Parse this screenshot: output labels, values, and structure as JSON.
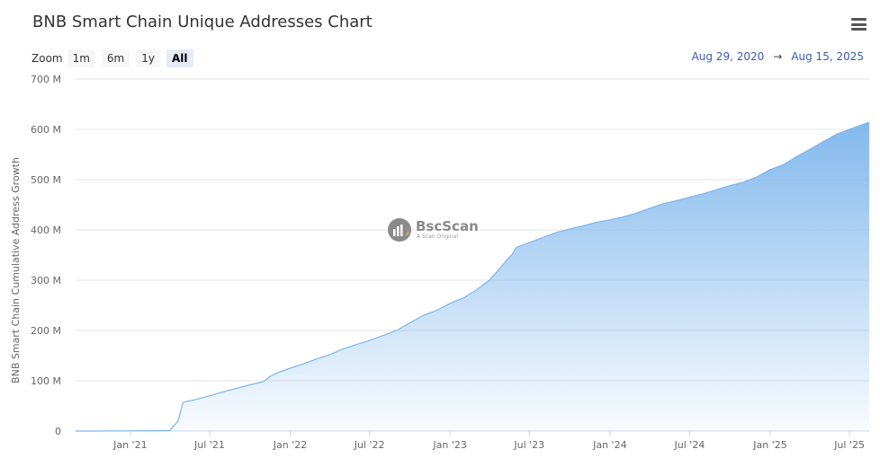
{
  "title": "BNB Smart Chain Unique Addresses Chart",
  "zoom": {
    "label": "Zoom",
    "buttons": [
      "1m",
      "6m",
      "1y",
      "All"
    ],
    "active": "All"
  },
  "range": {
    "from": "Aug 29, 2020",
    "arrow": "→",
    "to": "Aug 15, 2025"
  },
  "watermark": {
    "name": "BscScan",
    "sub": "A Scan Original"
  },
  "colors": {
    "accent": "#7cb5ec",
    "date_text": "#335cad"
  },
  "icons": {
    "menu": "hamburger-menu-icon",
    "watermark_logo": "bscscan-logo-icon"
  },
  "chart_data": {
    "type": "area",
    "xlabel": "",
    "ylabel": "BNB Smart Chain Cumulative Address Growth",
    "x_range": [
      "2020-08-29",
      "2025-08-15"
    ],
    "ylim": [
      0,
      700
    ],
    "y_ticks": [
      0,
      100,
      200,
      300,
      400,
      500,
      600,
      700
    ],
    "y_tick_labels": [
      "0",
      "100 M",
      "200 M",
      "300 M",
      "400 M",
      "500 M",
      "600 M",
      "700 M"
    ],
    "x_ticks": [
      {
        "date": "2021-01-01",
        "label": "Jan '21"
      },
      {
        "date": "2021-07-01",
        "label": "Jul '21"
      },
      {
        "date": "2022-01-01",
        "label": "Jan '22"
      },
      {
        "date": "2022-07-01",
        "label": "Jul '22"
      },
      {
        "date": "2023-01-01",
        "label": "Jan '23"
      },
      {
        "date": "2023-07-01",
        "label": "Jul '23"
      },
      {
        "date": "2024-01-01",
        "label": "Jan '24"
      },
      {
        "date": "2024-07-01",
        "label": "Jul '24"
      },
      {
        "date": "2025-01-01",
        "label": "Jan '25"
      },
      {
        "date": "2025-07-01",
        "label": "Jul '25"
      }
    ],
    "grid": true,
    "legend": "none",
    "series": [
      {
        "x": [
          "2020-08-29",
          "2020-10-15",
          "2020-12-01",
          "2021-02-01",
          "2021-04-01",
          "2021-04-20",
          "2021-05-01",
          "2021-05-15",
          "2021-06-01",
          "2021-07-01",
          "2021-08-01",
          "2021-09-01",
          "2021-10-01",
          "2021-11-01",
          "2021-11-15",
          "2021-12-01",
          "2022-01-01",
          "2022-02-01",
          "2022-03-01",
          "2022-04-01",
          "2022-05-01",
          "2022-05-15",
          "2022-06-01",
          "2022-07-01",
          "2022-08-01",
          "2022-09-01",
          "2022-10-01",
          "2022-11-01",
          "2022-12-01",
          "2023-01-01",
          "2023-02-01",
          "2023-03-01",
          "2023-04-01",
          "2023-05-01",
          "2023-05-15",
          "2023-05-22",
          "2023-06-01",
          "2023-07-01",
          "2023-08-01",
          "2023-09-01",
          "2023-10-01",
          "2023-11-01",
          "2023-12-01",
          "2024-01-01",
          "2024-02-01",
          "2024-03-01",
          "2024-04-01",
          "2024-05-01",
          "2024-06-01",
          "2024-07-01",
          "2024-08-01",
          "2024-09-01",
          "2024-10-01",
          "2024-11-01",
          "2024-12-01",
          "2025-01-01",
          "2025-02-01",
          "2025-03-01",
          "2025-04-01",
          "2025-05-01",
          "2025-06-01",
          "2025-07-01",
          "2025-08-01",
          "2025-08-15"
        ],
        "values": [
          0,
          0,
          0.3,
          0.5,
          1,
          20,
          57,
          60,
          63,
          70,
          78,
          85,
          92,
          98,
          108,
          115,
          125,
          134,
          143,
          152,
          163,
          167,
          172,
          180,
          190,
          200,
          215,
          230,
          240,
          254,
          265,
          280,
          300,
          330,
          345,
          350,
          365,
          375,
          385,
          395,
          402,
          408,
          415,
          420,
          426,
          433,
          443,
          452,
          458,
          465,
          472,
          480,
          488,
          495,
          505,
          520,
          530,
          545,
          560,
          575,
          590,
          600,
          610,
          614
        ]
      }
    ]
  }
}
